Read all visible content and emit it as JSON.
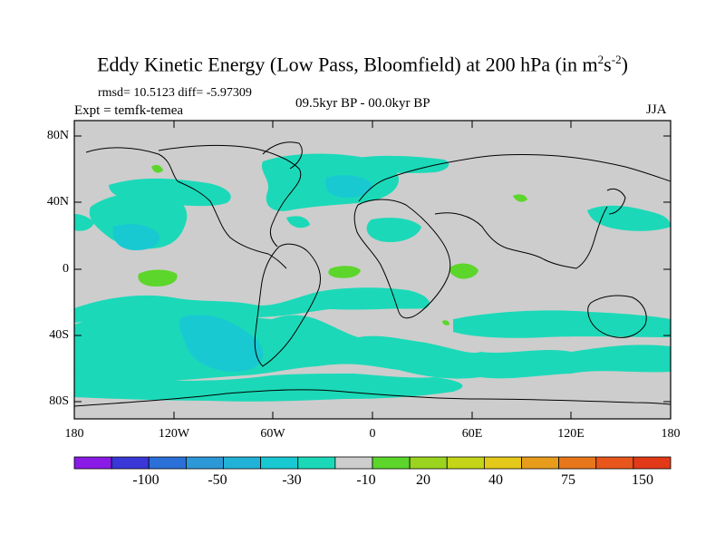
{
  "title": {
    "main": "Eddy Kinetic Energy (Low Pass, Bloomfield) at 200 hPa (in m",
    "sup1": "2",
    "mid": "s",
    "sup2": "-2",
    "end": ")"
  },
  "stats": "rmsd= 10.5123 diff= -5.97309",
  "experiment": "Expt = temfk-temea",
  "period": "09.5kyr BP - 00.0kyr BP",
  "season": "JJA",
  "axes": {
    "y_ticks": [
      "80N",
      "40N",
      "0",
      "40S",
      "80S"
    ],
    "x_ticks": [
      "180",
      "120W",
      "60W",
      "0",
      "60E",
      "120E",
      "180"
    ]
  },
  "colorbar": {
    "colors": [
      "#8a1be6",
      "#3a36d8",
      "#2b6fd8",
      "#2d98d8",
      "#22b2d8",
      "#18c9d2",
      "#1bd9b8",
      "#cdcdcd",
      "#5cd62a",
      "#9bd41f",
      "#c4d418",
      "#e4c81a",
      "#e89c1c",
      "#e8771c",
      "#e8561c",
      "#e23a18"
    ],
    "labels": [
      "-100",
      "-50",
      "-30",
      "-10",
      "20",
      "40",
      "75",
      "150"
    ]
  },
  "colors": {
    "land_ocean_background": "#cdcdcd",
    "negative_anomaly": "#1bd9b8",
    "negative_anomaly_strong": "#18c9d2",
    "positive_anomaly": "#5cd62a"
  }
}
